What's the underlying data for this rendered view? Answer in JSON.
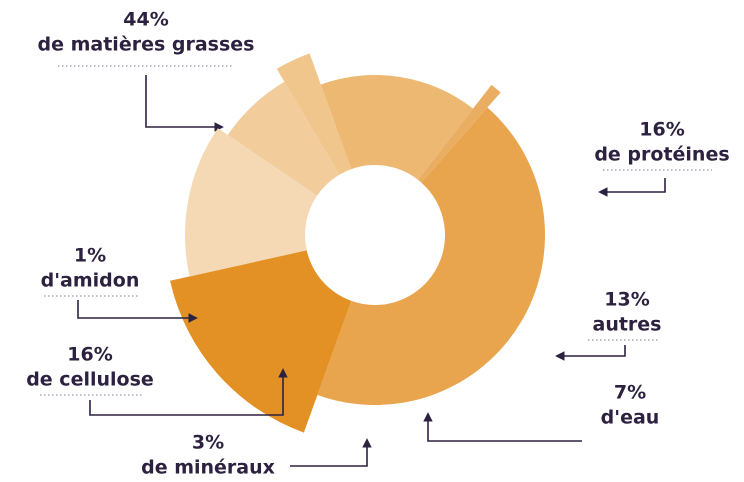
{
  "chart_data": {
    "type": "donut",
    "categories": [
      "de matières grasses",
      "de protéines",
      "autres",
      "d'eau",
      "de minéraux",
      "de cellulose",
      "d'amidon"
    ],
    "values": [
      44,
      16,
      13,
      7,
      3,
      16,
      1
    ],
    "value_labels": [
      "44%",
      "16%",
      "13%",
      "7%",
      "3%",
      "16%",
      "1%"
    ],
    "colors": [
      "#e8a54e",
      "#e39125",
      "#f5d9b5",
      "#f3cc9c",
      "#f1c68c",
      "#edb872",
      "#eaae62"
    ]
  }
}
